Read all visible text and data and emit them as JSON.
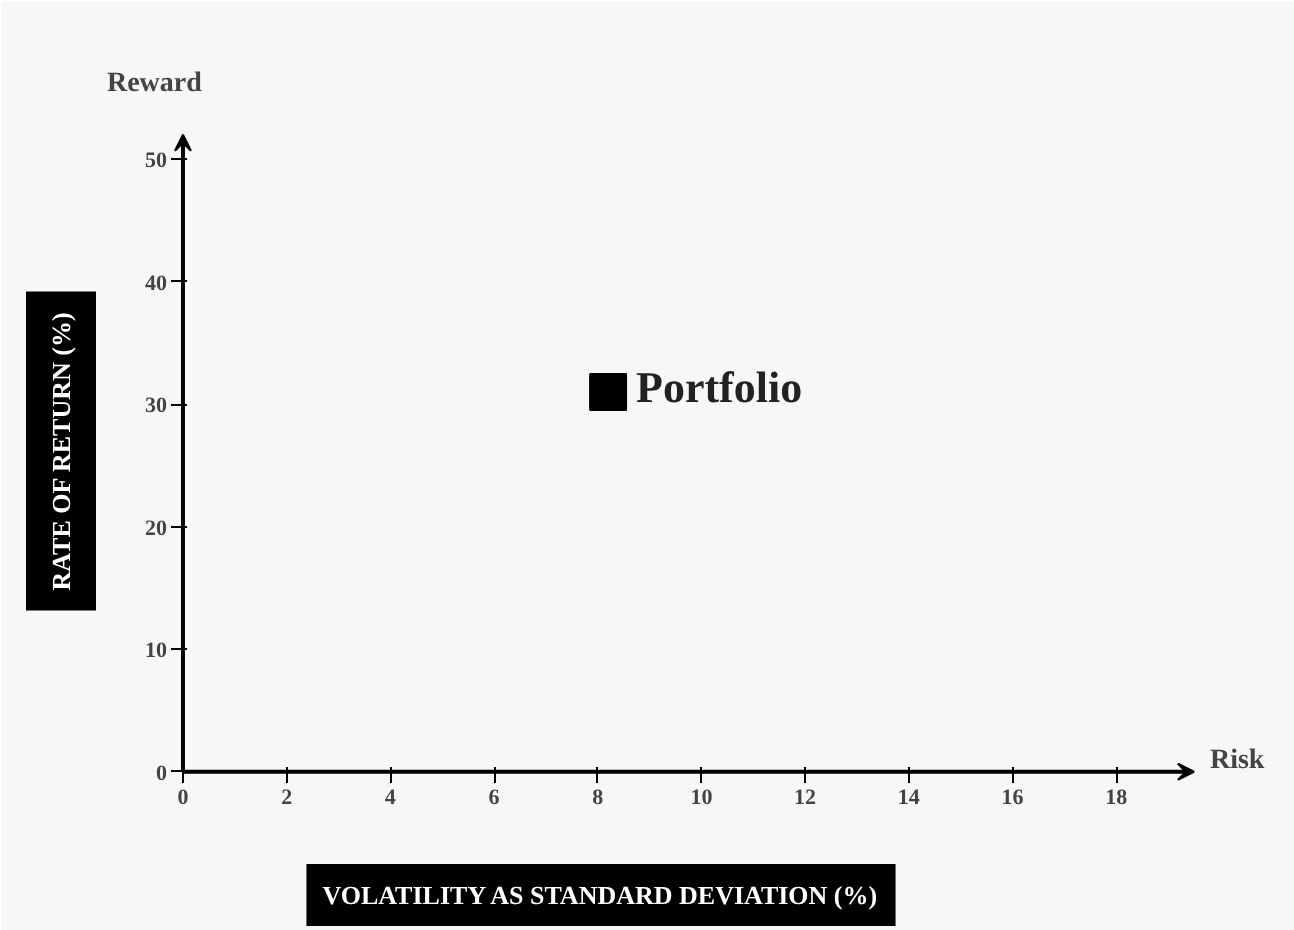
{
  "chart_data": {
    "type": "scatter",
    "xlabel": "VOLATILITY AS STANDARD DEVIATION (%)",
    "ylabel": "RATE OF RETURN (%)",
    "annotations": [
      "Reward",
      "Risk"
    ],
    "series": [
      {
        "name": "Portfolio",
        "color": "#000000",
        "x": [
          8.2
        ],
        "values": [
          31
        ]
      }
    ],
    "xlim": [
      0,
      19.5
    ],
    "xticks": [
      0,
      2,
      4,
      6,
      8,
      10,
      12,
      14,
      16,
      18
    ],
    "ylim": [
      0,
      52
    ],
    "yticks": [
      0,
      10,
      20,
      30,
      40,
      50
    ],
    "marker": "square",
    "grid": false,
    "legend": false
  }
}
